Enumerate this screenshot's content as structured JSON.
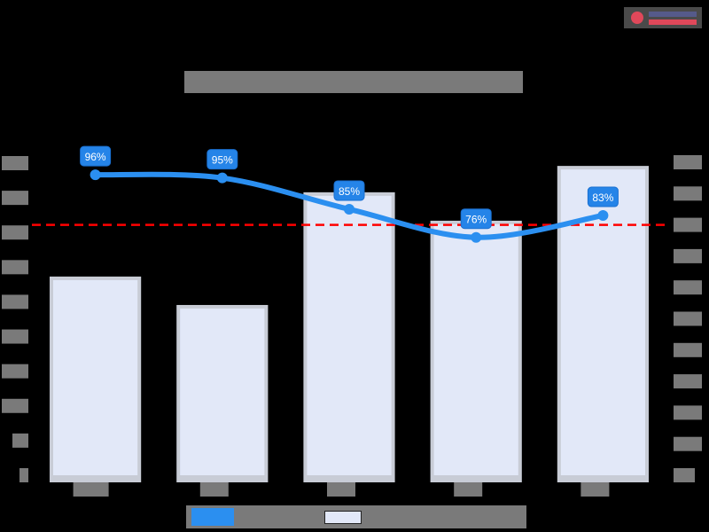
{
  "chart": {
    "title": "",
    "logo": {
      "text": ""
    },
    "legend": [
      {
        "label": "",
        "type": "line",
        "color": "#2b8ff0"
      },
      {
        "label": "",
        "type": "bar",
        "color": "#e2e8f8"
      }
    ]
  },
  "colors": {
    "line": "#2b8ff0",
    "bar": "#e2e8f8",
    "bar_border": "#c8ccd6",
    "target": "#ff0000",
    "label_bg": "#2584e8"
  },
  "chart_data": {
    "type": "bar+line",
    "title": "",
    "categories": [
      "",
      "",
      "",
      "",
      ""
    ],
    "series": [
      {
        "name": "",
        "type": "bar",
        "axis": "left",
        "values": [
          573,
          491,
          816,
          734,
          892
        ]
      },
      {
        "name": "",
        "type": "line",
        "axis": "right",
        "values": [
          96,
          95,
          85,
          76,
          83
        ],
        "labels": [
          "96%",
          "95%",
          "85%",
          "76%",
          "83%"
        ]
      }
    ],
    "reference_line": {
      "axis": "right",
      "value": 80,
      "style": "dashed",
      "color": "#ff0000"
    },
    "left_axis": {
      "ylim": [
        0,
        900
      ],
      "ticks": 10
    },
    "right_axis": {
      "ylim": [
        0,
        100
      ],
      "ticks": 11,
      "format": "%"
    },
    "xlabel": "",
    "ylabel": "",
    "y2label": "",
    "legend_position": "bottom"
  }
}
